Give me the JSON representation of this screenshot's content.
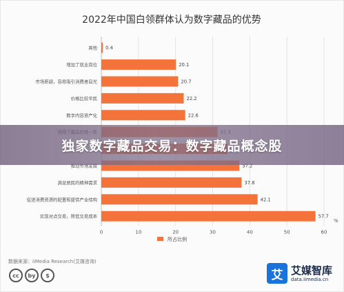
{
  "colors": {
    "bar": "#f4733a",
    "grid": "#e3e3e3",
    "axis_text": "#555555",
    "banner_text": "#ffffff"
  },
  "chart_data": {
    "type": "bar",
    "orientation": "horizontal",
    "title": "2022年中国白领群体认为数字藏品的优势",
    "categories": [
      "其他",
      "增加了就业岗位",
      "市场新颖，容易吸引消费者目光",
      "价格比较平民",
      "数字内容资产化",
      "保障了藏品的唯一性",
      "",
      "推动市场发展",
      "满足居民的精神需求",
      "促进消费资源的配置和提供产业结构",
      "实现对点交易，降低交易成本"
    ],
    "values": [
      0.4,
      20.1,
      20.7,
      22.2,
      22.6,
      31.3,
      34.0,
      37.2,
      37.8,
      42.1,
      57.7
    ],
    "data_labels": [
      "0.4",
      "20.1",
      "20.7",
      "22.2",
      "22.6",
      "31.3",
      "",
      "37.2",
      "37.8",
      "42.1",
      "57.7"
    ],
    "xlim": [
      0,
      60
    ],
    "xticks": [
      "0",
      "10",
      "20",
      "30",
      "40",
      "50",
      "60"
    ],
    "unit_label": "%",
    "legend": {
      "label": "所占比例",
      "position": "bottom-center"
    },
    "grid": true
  },
  "overlay": {
    "banner_text": "独家数字藏品交易：数字藏品概念股"
  },
  "footer": {
    "source": "数据来源：iiMedia Research(艾媒咨询)",
    "license_badges": [
      "cc",
      "by",
      "$"
    ],
    "brand_logo_char": "艾",
    "brand_name": "艾媒智库",
    "brand_url": "data.iimedia.cn"
  }
}
